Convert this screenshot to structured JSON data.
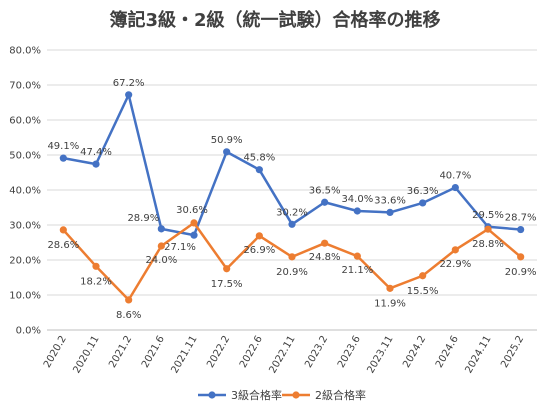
{
  "chart_data": {
    "type": "line",
    "title": "簿記3級・2級（統一試験）合格率の推移",
    "categories": [
      "2020.2",
      "2020.11",
      "2021.2",
      "2021.6",
      "2021.11",
      "2022.2",
      "2022.6",
      "2022.11",
      "2023.2",
      "2023.6",
      "2023.11",
      "2024.2",
      "2024.6",
      "2024.11",
      "2025.2"
    ],
    "ylim": [
      0,
      80
    ],
    "yticks": [
      "0.0%",
      "10.0%",
      "20.0%",
      "30.0%",
      "40.0%",
      "50.0%",
      "60.0%",
      "70.0%",
      "80.0%"
    ],
    "series": [
      {
        "name": "3級合格率",
        "color": "#4472C4",
        "values": [
          49.1,
          47.4,
          67.2,
          28.9,
          27.1,
          50.9,
          45.8,
          30.2,
          36.5,
          34.0,
          33.6,
          36.3,
          40.7,
          29.5,
          28.7
        ],
        "labels": [
          "49.1%",
          "47.4%",
          "67.2%",
          "28.9%",
          "27.1%",
          "50.9%",
          "45.8%",
          "30.2%",
          "36.5%",
          "34.0%",
          "33.6%",
          "36.3%",
          "40.7%",
          "29.5%",
          "28.7%"
        ]
      },
      {
        "name": "2級合格率",
        "color": "#ED7D31",
        "values": [
          28.6,
          18.2,
          8.6,
          24.0,
          30.6,
          17.5,
          26.9,
          20.9,
          24.8,
          21.1,
          11.9,
          15.5,
          22.9,
          28.8,
          20.9
        ],
        "labels": [
          "28.6%",
          "18.2%",
          "8.6%",
          "24.0%",
          "30.6%",
          "17.5%",
          "26.9%",
          "20.9%",
          "24.8%",
          "21.1%",
          "11.9%",
          "15.5%",
          "22.9%",
          "28.8%",
          "20.9%"
        ]
      }
    ],
    "grid": true,
    "legend": "bottom"
  }
}
